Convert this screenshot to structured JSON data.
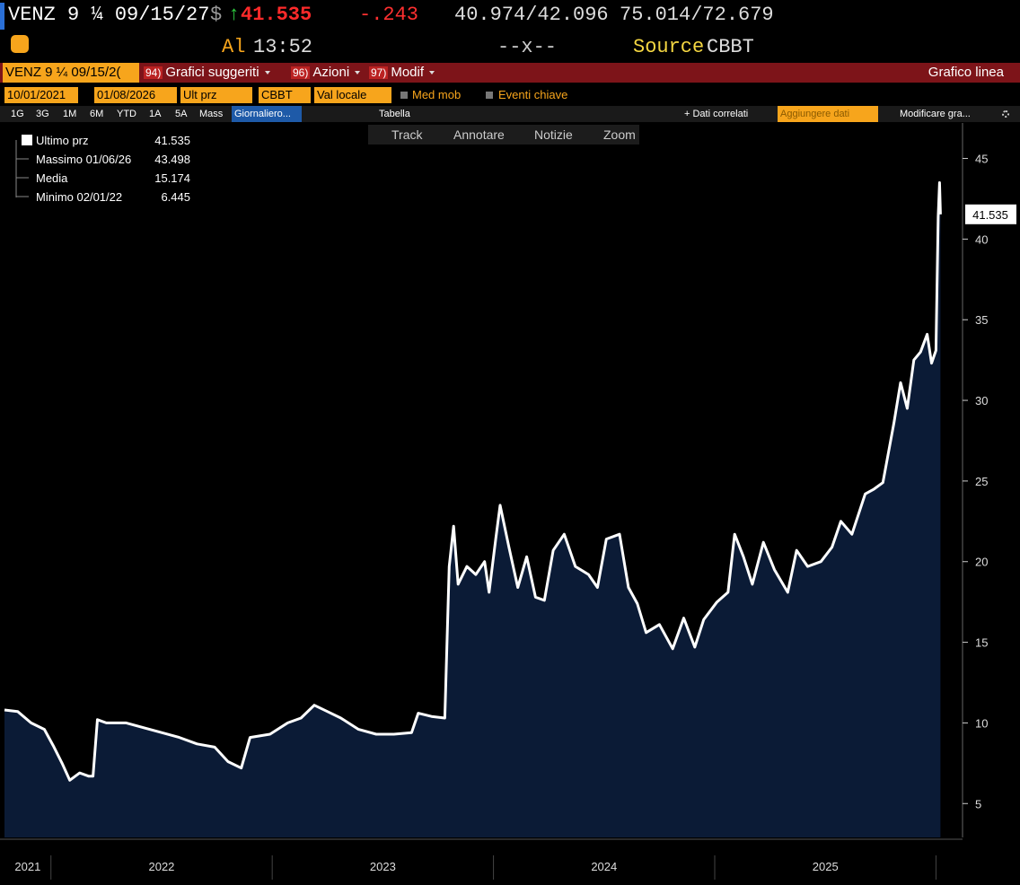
{
  "header": {
    "ticker": "VENZ 9 ¼ 09/15/27",
    "currency": "$",
    "arrow": "↑",
    "price": "41.535",
    "change": "-.243",
    "bid_ask": "40.974/42.096",
    "yield": "75.014/72.679",
    "at": "Al",
    "time": "13:52",
    "size": "--x--",
    "source_label": "Source",
    "source": "CBBT"
  },
  "menu": {
    "security": "VENZ 9 ¼ 09/15/2(",
    "items": [
      {
        "num": "94)",
        "label": "Grafici suggeriti"
      },
      {
        "num": "96)",
        "label": "Azioni"
      },
      {
        "num": "97)",
        "label": "Modif"
      }
    ],
    "view": "Grafico linea"
  },
  "controls": {
    "start": "10/01/2021",
    "end": "01/08/2026",
    "field": "Ult prz",
    "source": "CBBT",
    "currency": "Val locale",
    "moving_avg": "Med mob",
    "events": "Eventi chiave"
  },
  "toolbar": {
    "periods": [
      "1G",
      "3G",
      "1M",
      "6M",
      "YTD",
      "1A",
      "5A",
      "Mass"
    ],
    "frequency": "Giornaliero...",
    "table": "Tabella",
    "related": "+ Dati correlati",
    "add_data": "Aggiungere dati",
    "edit": "Modificare gra..."
  },
  "tools": [
    "Track",
    "Annotare",
    "Notizie",
    "Zoom"
  ],
  "chart_data": {
    "type": "area",
    "legend": [
      {
        "label": "Ultimo prz",
        "value": 41.535
      },
      {
        "label": "Massimo 01/06/26",
        "value": 43.498
      },
      {
        "label": "Media",
        "value": 15.174
      },
      {
        "label": "Minimo 02/01/22",
        "value": 6.445
      }
    ],
    "x": [
      2021.79,
      2021.85,
      2021.91,
      2021.97,
      2022.01,
      2022.05,
      2022.085,
      2022.13,
      2022.17,
      2022.19,
      2022.21,
      2022.25,
      2022.34,
      2022.42,
      2022.5,
      2022.58,
      2022.66,
      2022.74,
      2022.8,
      2022.86,
      2022.9,
      2022.99,
      2023.07,
      2023.13,
      2023.19,
      2023.25,
      2023.31,
      2023.39,
      2023.47,
      2023.55,
      2023.63,
      2023.66,
      2023.72,
      2023.78,
      2023.8,
      2023.82,
      2023.84,
      2023.88,
      2023.92,
      2023.96,
      2023.98,
      2024.01,
      2024.03,
      2024.07,
      2024.11,
      2024.15,
      2024.19,
      2024.23,
      2024.27,
      2024.32,
      2024.37,
      2024.43,
      2024.47,
      2024.51,
      2024.57,
      2024.61,
      2024.65,
      2024.69,
      2024.75,
      2024.81,
      2024.86,
      2024.91,
      2024.95,
      2025.01,
      2025.06,
      2025.09,
      2025.13,
      2025.17,
      2025.22,
      2025.27,
      2025.33,
      2025.37,
      2025.42,
      2025.48,
      2025.53,
      2025.57,
      2025.62,
      2025.68,
      2025.72,
      2025.76,
      2025.81,
      2025.84,
      2025.87,
      2025.9,
      2025.93,
      2025.96,
      2025.98,
      2026.0,
      2026.01,
      2026.016,
      2026.02
    ],
    "series": [
      {
        "color": "#ffffff",
        "fill": "#0b1b36",
        "values": [
          10.8,
          10.7,
          10.0,
          9.6,
          8.6,
          7.5,
          6.445,
          6.9,
          6.7,
          6.7,
          10.2,
          10.0,
          10.0,
          9.7,
          9.4,
          9.1,
          8.7,
          8.5,
          7.6,
          7.2,
          9.1,
          9.3,
          10.0,
          10.3,
          11.1,
          10.7,
          10.3,
          9.6,
          9.3,
          9.3,
          9.4,
          10.6,
          10.4,
          10.3,
          19.7,
          22.2,
          18.6,
          19.7,
          19.2,
          20.0,
          18.1,
          21.4,
          23.5,
          20.9,
          18.4,
          20.3,
          17.8,
          17.6,
          20.7,
          21.7,
          19.7,
          19.2,
          18.4,
          21.4,
          21.7,
          18.4,
          17.4,
          15.6,
          16.1,
          14.6,
          16.5,
          14.7,
          16.4,
          17.5,
          18.1,
          21.7,
          20.3,
          18.6,
          21.2,
          19.5,
          18.1,
          20.7,
          19.7,
          20.0,
          20.9,
          22.5,
          21.7,
          24.2,
          24.5,
          24.9,
          28.6,
          31.1,
          29.5,
          32.5,
          33.0,
          34.1,
          32.3,
          33.1,
          41.4,
          43.498,
          41.535
        ]
      }
    ],
    "xlim": [
      2021.79,
      2026.12
    ],
    "xticks": [
      2022,
      2023,
      2024,
      2025,
      2026
    ],
    "year_labels": [
      "2021",
      "2022",
      "2023",
      "2024",
      "2025"
    ],
    "ylim": [
      2.9,
      47.2
    ],
    "yticks": [
      5,
      10,
      15,
      20,
      25,
      30,
      35,
      40,
      45
    ],
    "grid": false
  }
}
